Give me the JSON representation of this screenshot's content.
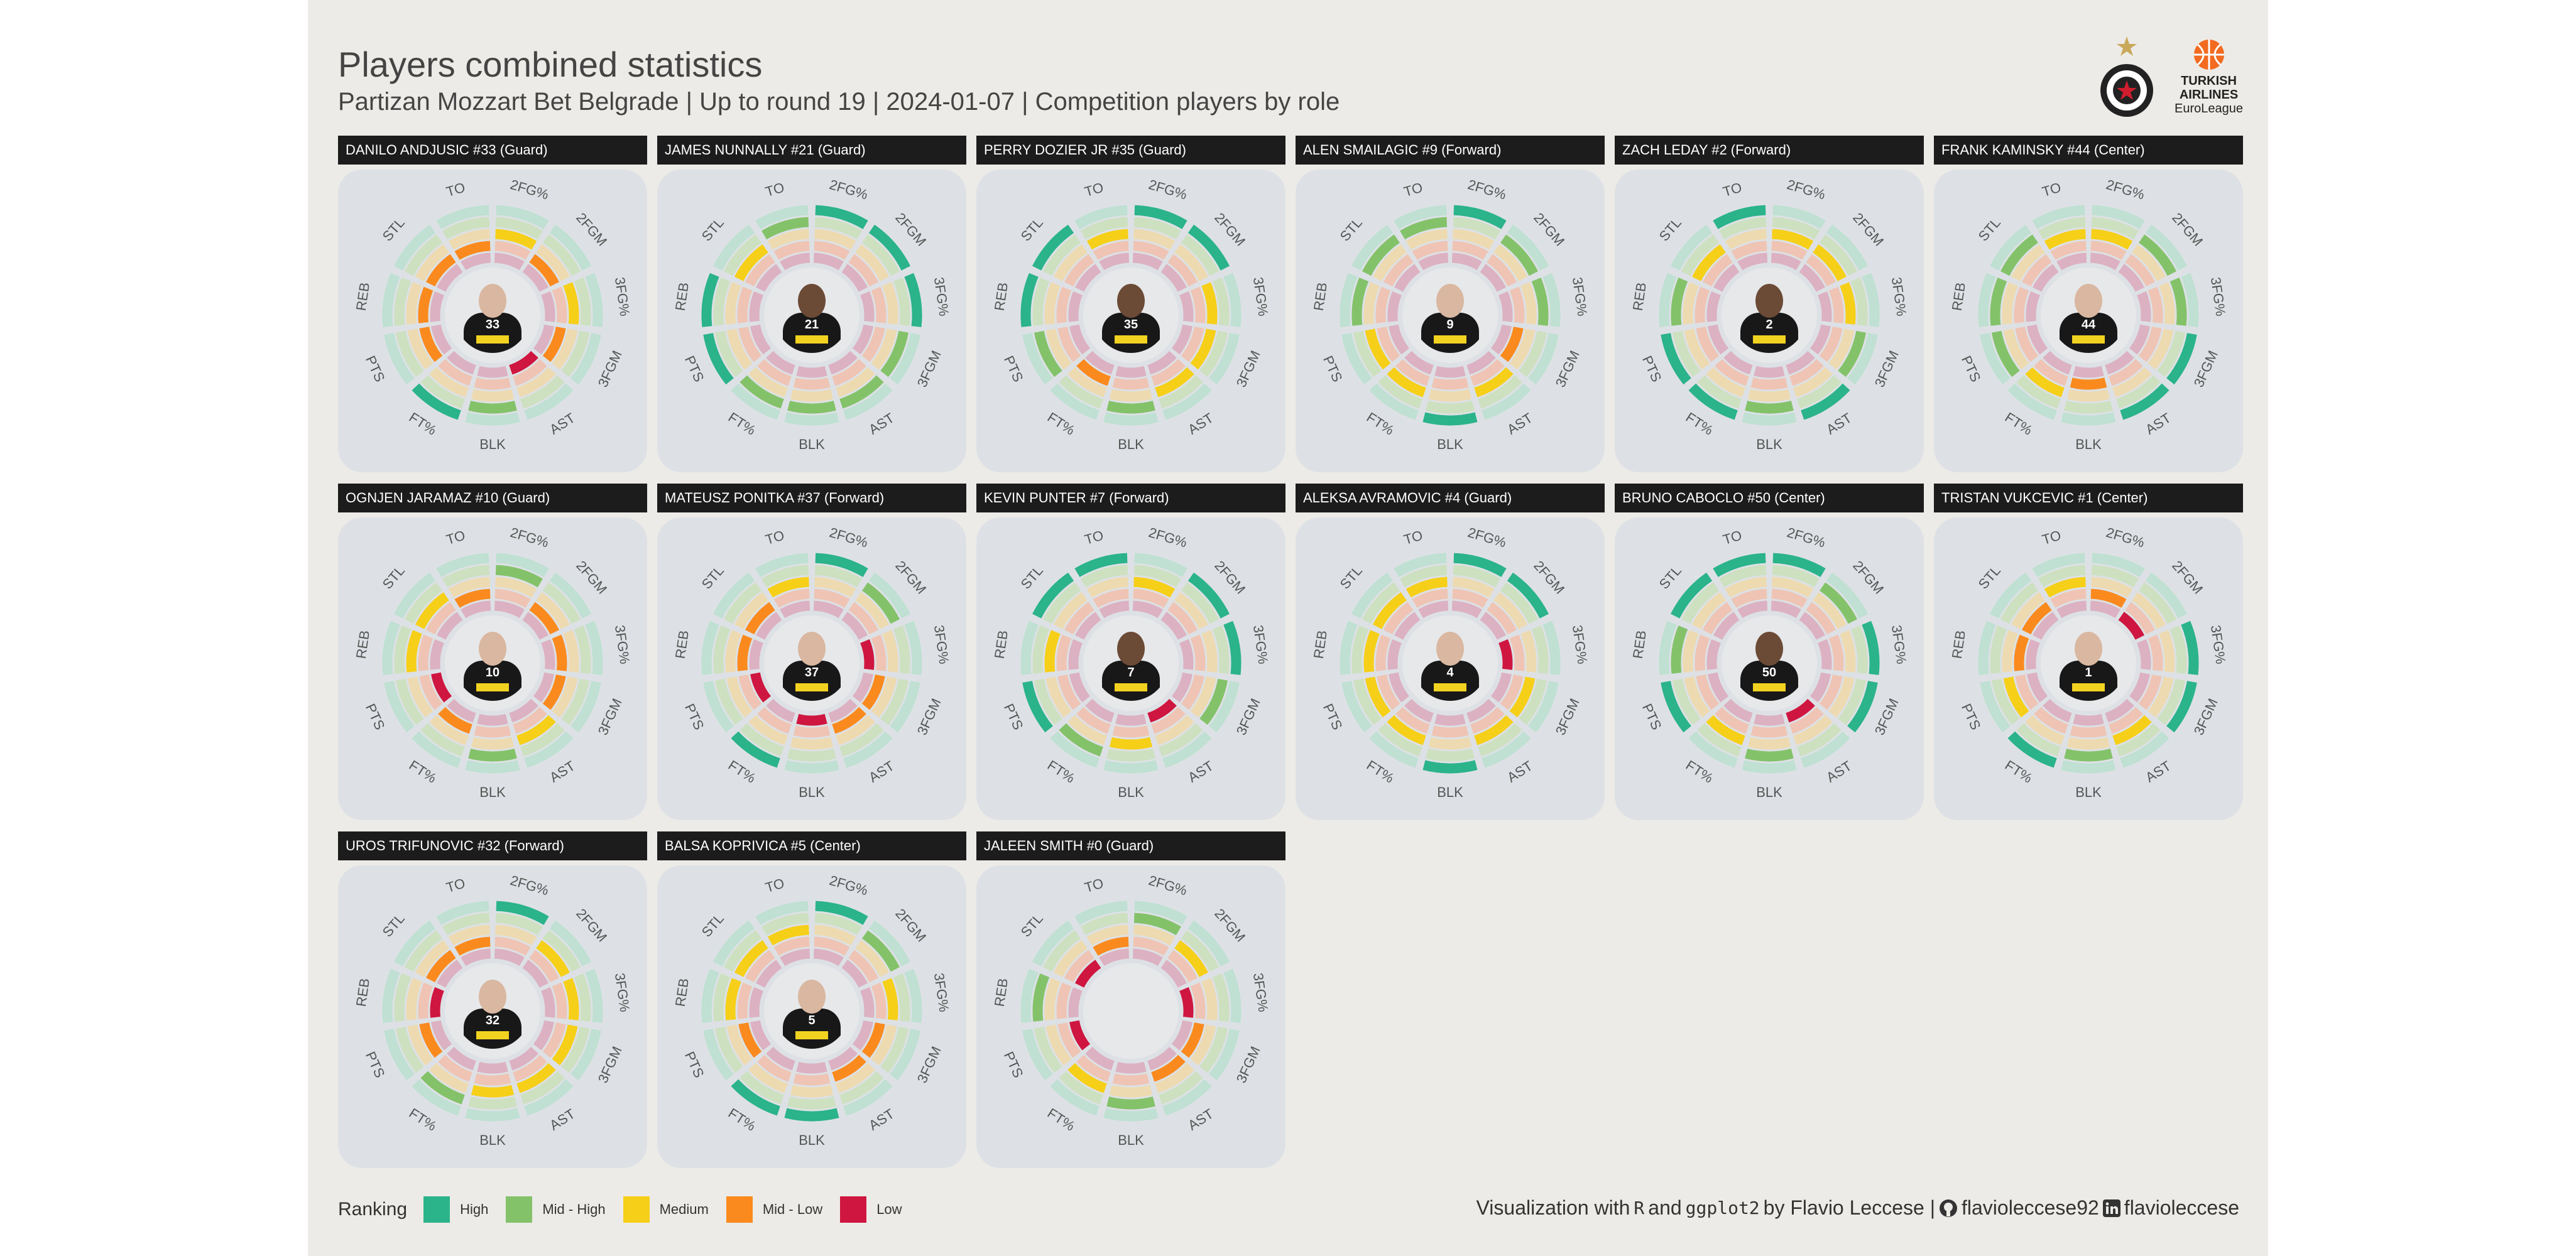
{
  "header": {
    "title": "Players combined statistics",
    "subtitle": "Partizan Mozzart Bet Belgrade | Up to round 19 | 2024-01-07 | Competition players by role"
  },
  "logos": {
    "euroleague_line1": "TURKISH",
    "euroleague_line2": "AIRLINES",
    "euroleague_line3": "EuroLeague"
  },
  "legend": {
    "title": "Ranking",
    "items": [
      {
        "label": "High",
        "color": "#2bb38a"
      },
      {
        "label": "Mid - High",
        "color": "#84c26a"
      },
      {
        "label": "Medium",
        "color": "#f6cf18"
      },
      {
        "label": "Mid - Low",
        "color": "#fa8a1e"
      },
      {
        "label": "Low",
        "color": "#cf1640"
      }
    ]
  },
  "caption": {
    "prefix": "Visualization with",
    "r": "R",
    "and": "and",
    "pkg": "ggplot2",
    "author": "by Flavio Leccese |",
    "github": "flavioleccese92",
    "linkedin": "flavioleccese"
  },
  "chart_data": {
    "type": "radial-bar",
    "levels": [
      "Low",
      "Mid - Low",
      "Medium",
      "Mid - High",
      "High"
    ],
    "categories": [
      "2FG%",
      "2FGM",
      "3FG%",
      "3FGM",
      "AST",
      "BLK",
      "FT%",
      "PTS",
      "REB",
      "STL",
      "TO"
    ],
    "players": [
      {
        "name": "DANILO ANDJUSIC #33 (Guard)",
        "number": "33",
        "values": [
          3,
          2,
          3,
          2,
          1,
          4,
          5,
          2,
          2,
          2,
          2
        ]
      },
      {
        "name": "JAMES NUNNALLY #21 (Guard)",
        "number": "21",
        "values": [
          5,
          5,
          5,
          4,
          4,
          4,
          4,
          5,
          5,
          3,
          4
        ]
      },
      {
        "name": "PERRY DOZIER JR #35 (Guard)",
        "number": "35",
        "values": [
          5,
          5,
          3,
          3,
          3,
          4,
          2,
          4,
          5,
          5,
          3
        ]
      },
      {
        "name": "ALEN SMAILAGIC #9 (Forward)",
        "number": "9",
        "values": [
          5,
          4,
          4,
          2,
          3,
          5,
          3,
          3,
          4,
          4,
          4
        ]
      },
      {
        "name": "ZACH LEDAY #2 (Forward)",
        "number": "2",
        "values": [
          3,
          3,
          3,
          4,
          5,
          4,
          5,
          5,
          4,
          3,
          5
        ]
      },
      {
        "name": "FRANK KAMINSKY #44 (Center)",
        "number": "44",
        "values": [
          3,
          4,
          4,
          5,
          5,
          2,
          3,
          4,
          4,
          4,
          3
        ]
      },
      {
        "name": "OGNJEN JARAMAZ #10 (Guard)",
        "number": "10",
        "values": [
          4,
          2,
          2,
          2,
          3,
          4,
          2,
          1,
          3,
          3,
          2
        ]
      },
      {
        "name": "MATEUSZ PONITKA #37 (Forward)",
        "number": "37",
        "values": [
          5,
          4,
          1,
          2,
          2,
          1,
          5,
          1,
          2,
          2,
          3
        ]
      },
      {
        "name": "KEVIN PUNTER #7 (Forward)",
        "number": "7",
        "values": [
          3,
          5,
          5,
          4,
          1,
          3,
          4,
          5,
          3,
          5,
          5
        ]
      },
      {
        "name": "ALEKSA AVRAMOVIC #4 (Guard)",
        "number": "4",
        "values": [
          5,
          5,
          1,
          3,
          3,
          5,
          3,
          3,
          3,
          3,
          3
        ]
      },
      {
        "name": "BRUNO CABOCLO #50 (Center)",
        "number": "50",
        "values": [
          5,
          4,
          5,
          5,
          1,
          4,
          3,
          5,
          4,
          5,
          5
        ]
      },
      {
        "name": "TRISTAN VUKCEVIC #1 (Center)",
        "number": "1",
        "values": [
          2,
          1,
          5,
          5,
          3,
          4,
          5,
          3,
          2,
          2,
          3
        ]
      },
      {
        "name": "UROS TRIFUNOVIC #32 (Forward)",
        "number": "32",
        "values": [
          5,
          3,
          3,
          3,
          3,
          3,
          4,
          2,
          1,
          2,
          2
        ]
      },
      {
        "name": "BALSA KOPRIVICA #5 (Center)",
        "number": "5",
        "values": [
          5,
          4,
          3,
          2,
          2,
          5,
          5,
          2,
          3,
          3,
          3
        ]
      },
      {
        "name": "JALEEN SMITH #0 (Guard)",
        "number": "0",
        "values": [
          4,
          3,
          1,
          2,
          2,
          4,
          3,
          1,
          4,
          1,
          2
        ]
      }
    ]
  }
}
